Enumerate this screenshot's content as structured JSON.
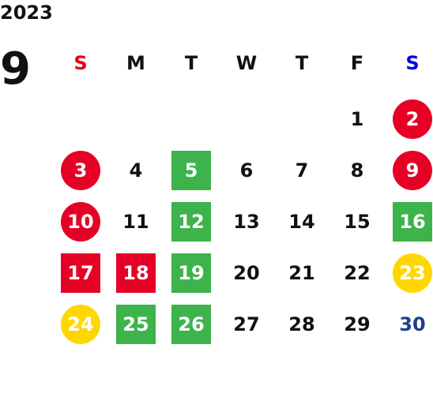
{
  "calendar": {
    "year": "2023",
    "month": "9",
    "weekdays": [
      {
        "label": "S",
        "color": "#e60012"
      },
      {
        "label": "M",
        "color": "#111111"
      },
      {
        "label": "T",
        "color": "#111111"
      },
      {
        "label": "W",
        "color": "#111111"
      },
      {
        "label": "T",
        "color": "#111111"
      },
      {
        "label": "F",
        "color": "#111111"
      },
      {
        "label": "S",
        "color": "#0000e6"
      }
    ],
    "days": [
      {
        "num": "",
        "shape": "none",
        "bg": "",
        "color": ""
      },
      {
        "num": "",
        "shape": "none",
        "bg": "",
        "color": ""
      },
      {
        "num": "",
        "shape": "none",
        "bg": "",
        "color": ""
      },
      {
        "num": "",
        "shape": "none",
        "bg": "",
        "color": ""
      },
      {
        "num": "",
        "shape": "none",
        "bg": "",
        "color": ""
      },
      {
        "num": "1",
        "shape": "none",
        "bg": "",
        "color": "#111111"
      },
      {
        "num": "2",
        "shape": "circle",
        "bg": "#e60026",
        "color": "#ffffff"
      },
      {
        "num": "3",
        "shape": "circle",
        "bg": "#e60026",
        "color": "#ffffff"
      },
      {
        "num": "4",
        "shape": "none",
        "bg": "",
        "color": "#111111"
      },
      {
        "num": "5",
        "shape": "square",
        "bg": "#3cb44b",
        "color": "#ffffff"
      },
      {
        "num": "6",
        "shape": "none",
        "bg": "",
        "color": "#111111"
      },
      {
        "num": "7",
        "shape": "none",
        "bg": "",
        "color": "#111111"
      },
      {
        "num": "8",
        "shape": "none",
        "bg": "",
        "color": "#111111"
      },
      {
        "num": "9",
        "shape": "circle",
        "bg": "#e60026",
        "color": "#ffffff"
      },
      {
        "num": "10",
        "shape": "circle",
        "bg": "#e60026",
        "color": "#ffffff"
      },
      {
        "num": "11",
        "shape": "none",
        "bg": "",
        "color": "#111111"
      },
      {
        "num": "12",
        "shape": "square",
        "bg": "#3cb44b",
        "color": "#ffffff"
      },
      {
        "num": "13",
        "shape": "none",
        "bg": "",
        "color": "#111111"
      },
      {
        "num": "14",
        "shape": "none",
        "bg": "",
        "color": "#111111"
      },
      {
        "num": "15",
        "shape": "none",
        "bg": "",
        "color": "#111111"
      },
      {
        "num": "16",
        "shape": "square",
        "bg": "#3cb44b",
        "color": "#ffffff"
      },
      {
        "num": "17",
        "shape": "square",
        "bg": "#e60026",
        "color": "#ffffff"
      },
      {
        "num": "18",
        "shape": "square",
        "bg": "#e60026",
        "color": "#ffffff"
      },
      {
        "num": "19",
        "shape": "square",
        "bg": "#3cb44b",
        "color": "#ffffff"
      },
      {
        "num": "20",
        "shape": "none",
        "bg": "",
        "color": "#111111"
      },
      {
        "num": "21",
        "shape": "none",
        "bg": "",
        "color": "#111111"
      },
      {
        "num": "22",
        "shape": "none",
        "bg": "",
        "color": "#111111"
      },
      {
        "num": "23",
        "shape": "circle",
        "bg": "#ffd700",
        "color": "#ffffff"
      },
      {
        "num": "24",
        "shape": "circle",
        "bg": "#ffd700",
        "color": "#ffffff"
      },
      {
        "num": "25",
        "shape": "square",
        "bg": "#3cb44b",
        "color": "#ffffff"
      },
      {
        "num": "26",
        "shape": "square",
        "bg": "#3cb44b",
        "color": "#ffffff"
      },
      {
        "num": "27",
        "shape": "none",
        "bg": "",
        "color": "#111111"
      },
      {
        "num": "28",
        "shape": "none",
        "bg": "",
        "color": "#111111"
      },
      {
        "num": "29",
        "shape": "none",
        "bg": "",
        "color": "#111111"
      },
      {
        "num": "30",
        "shape": "none",
        "bg": "",
        "color": "#1f3f8f"
      }
    ]
  }
}
